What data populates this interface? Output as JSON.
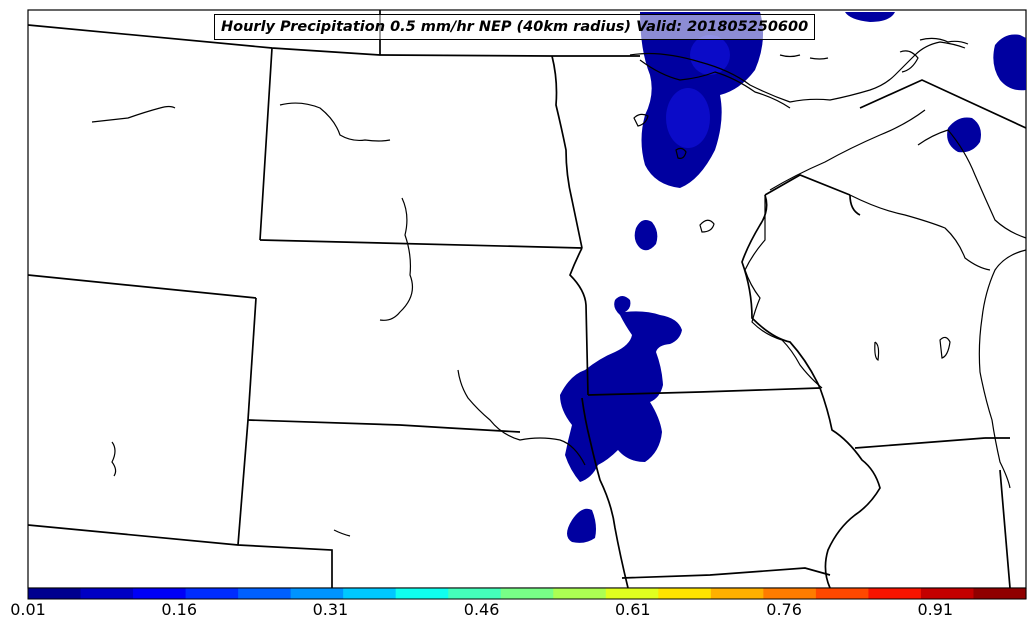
{
  "map": {
    "title": "Hourly Precipitation 0.5 mm/hr NEP (40km radius) Valid: 201805250600",
    "field_color": "#0000a0",
    "field_core_color": "#1010d8"
  },
  "colorbar": {
    "colors": [
      "#00008f",
      "#0000c4",
      "#0000f7",
      "#002cff",
      "#0060ff",
      "#0094ff",
      "#00c8ff",
      "#10ffef",
      "#44ffbb",
      "#78ff87",
      "#acff53",
      "#e0ff1f",
      "#ffe400",
      "#ffb000",
      "#ff7c00",
      "#ff4800",
      "#f81400",
      "#c40000",
      "#900000"
    ],
    "ticks": [
      "0.01",
      "0.16",
      "0.31",
      "0.46",
      "0.61",
      "0.76",
      "0.91"
    ],
    "range": [
      0.01,
      1.0
    ]
  }
}
